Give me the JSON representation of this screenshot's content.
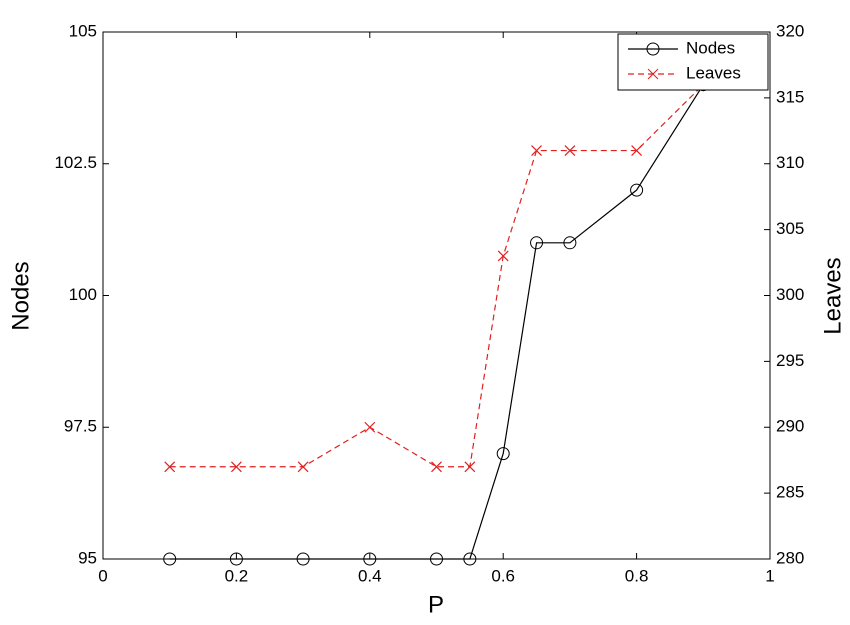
{
  "chart_data": {
    "type": "line",
    "x_label": "P",
    "y_label": "Nodes",
    "y2_label": "Leaves",
    "x": [
      0.1,
      0.2,
      0.3,
      0.4,
      0.5,
      0.55,
      0.6,
      0.65,
      0.7,
      0.8,
      0.9
    ],
    "series": [
      {
        "name": "Nodes",
        "color": "#000000",
        "marker": "circle",
        "dash": "solid",
        "axis": "y",
        "values": [
          95,
          95,
          95,
          95,
          95,
          95,
          97,
          101,
          101,
          102,
          104
        ]
      },
      {
        "name": "Leaves",
        "color": "#e02020",
        "marker": "x",
        "dash": "dashed",
        "axis": "y2",
        "values": [
          287,
          287,
          287,
          290,
          287,
          287,
          303,
          311,
          311,
          311,
          316
        ]
      }
    ],
    "xlim": [
      0,
      1
    ],
    "xticks": [
      0,
      0.2,
      0.4,
      0.6,
      0.8,
      1
    ],
    "ylim": [
      95,
      105
    ],
    "yticks": [
      95,
      97.5,
      100,
      102.5,
      105
    ],
    "y2lim": [
      280,
      320
    ],
    "y2ticks": [
      280,
      285,
      290,
      295,
      300,
      305,
      310,
      315,
      320
    ],
    "grid": false,
    "legend": "top-right"
  }
}
